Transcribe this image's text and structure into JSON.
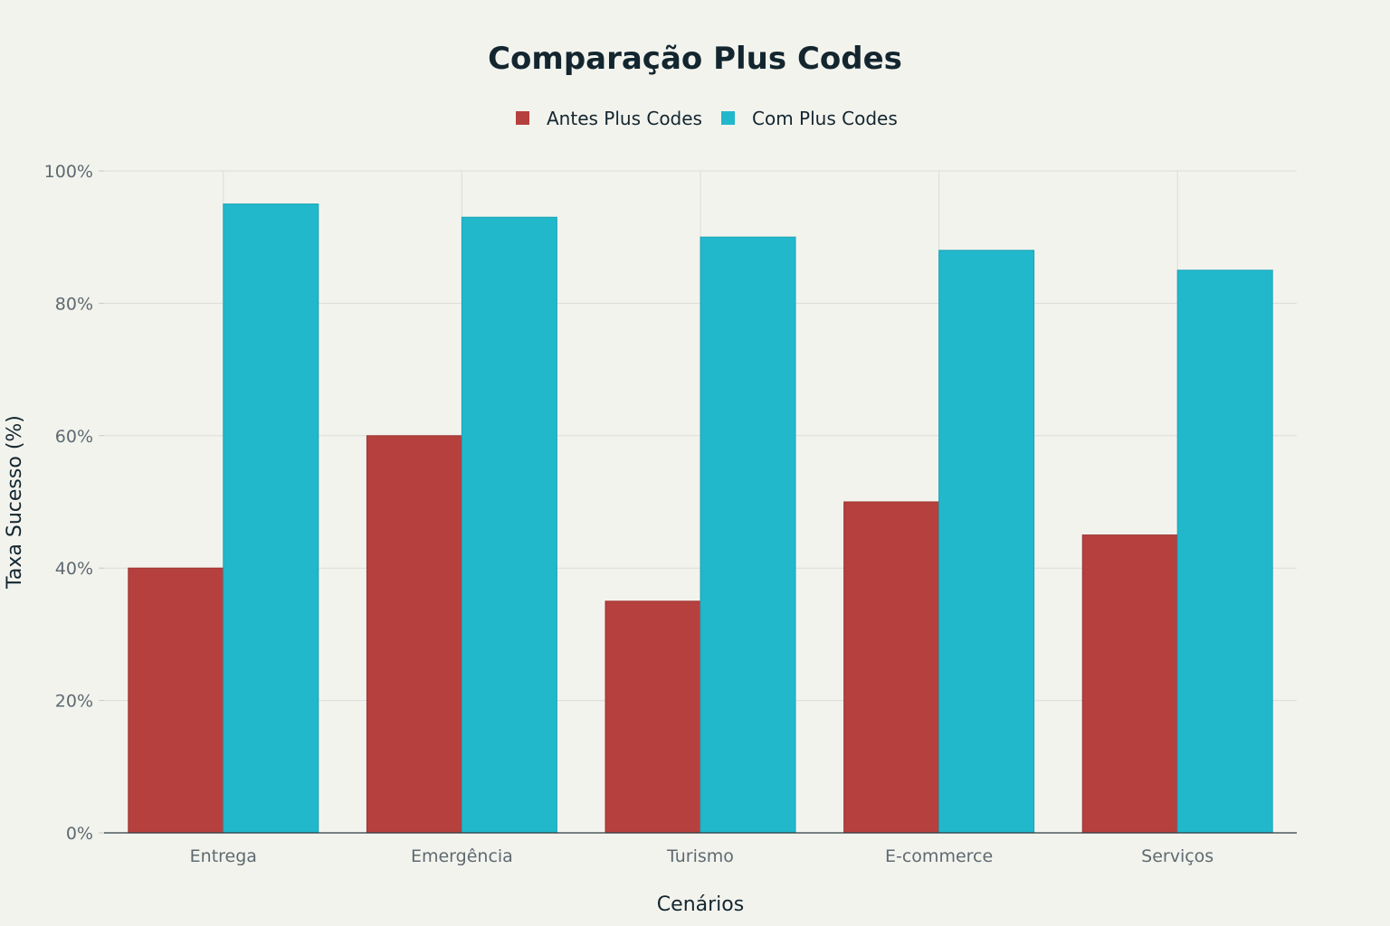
{
  "chart_data": {
    "type": "bar",
    "title": "Comparação Plus Codes",
    "xlabel": "Cenários",
    "ylabel": "Taxa Sucesso (%)",
    "categories": [
      "Entrega",
      "Emergência",
      "Turismo",
      "E-commerce",
      "Serviços"
    ],
    "series": [
      {
        "name": "Antes Plus Codes",
        "values": [
          40,
          60,
          35,
          50,
          45
        ],
        "color": "#B5403D"
      },
      {
        "name": "Com Plus Codes",
        "values": [
          95,
          93,
          90,
          88,
          85
        ],
        "color": "#21B8CC"
      }
    ],
    "ylim": [
      0,
      100
    ],
    "yticks": [
      0,
      20,
      40,
      60,
      80,
      100
    ],
    "ytick_labels": [
      "0%",
      "20%",
      "40%",
      "60%",
      "80%",
      "100%"
    ],
    "grid": true,
    "legend_position": "top-center"
  }
}
